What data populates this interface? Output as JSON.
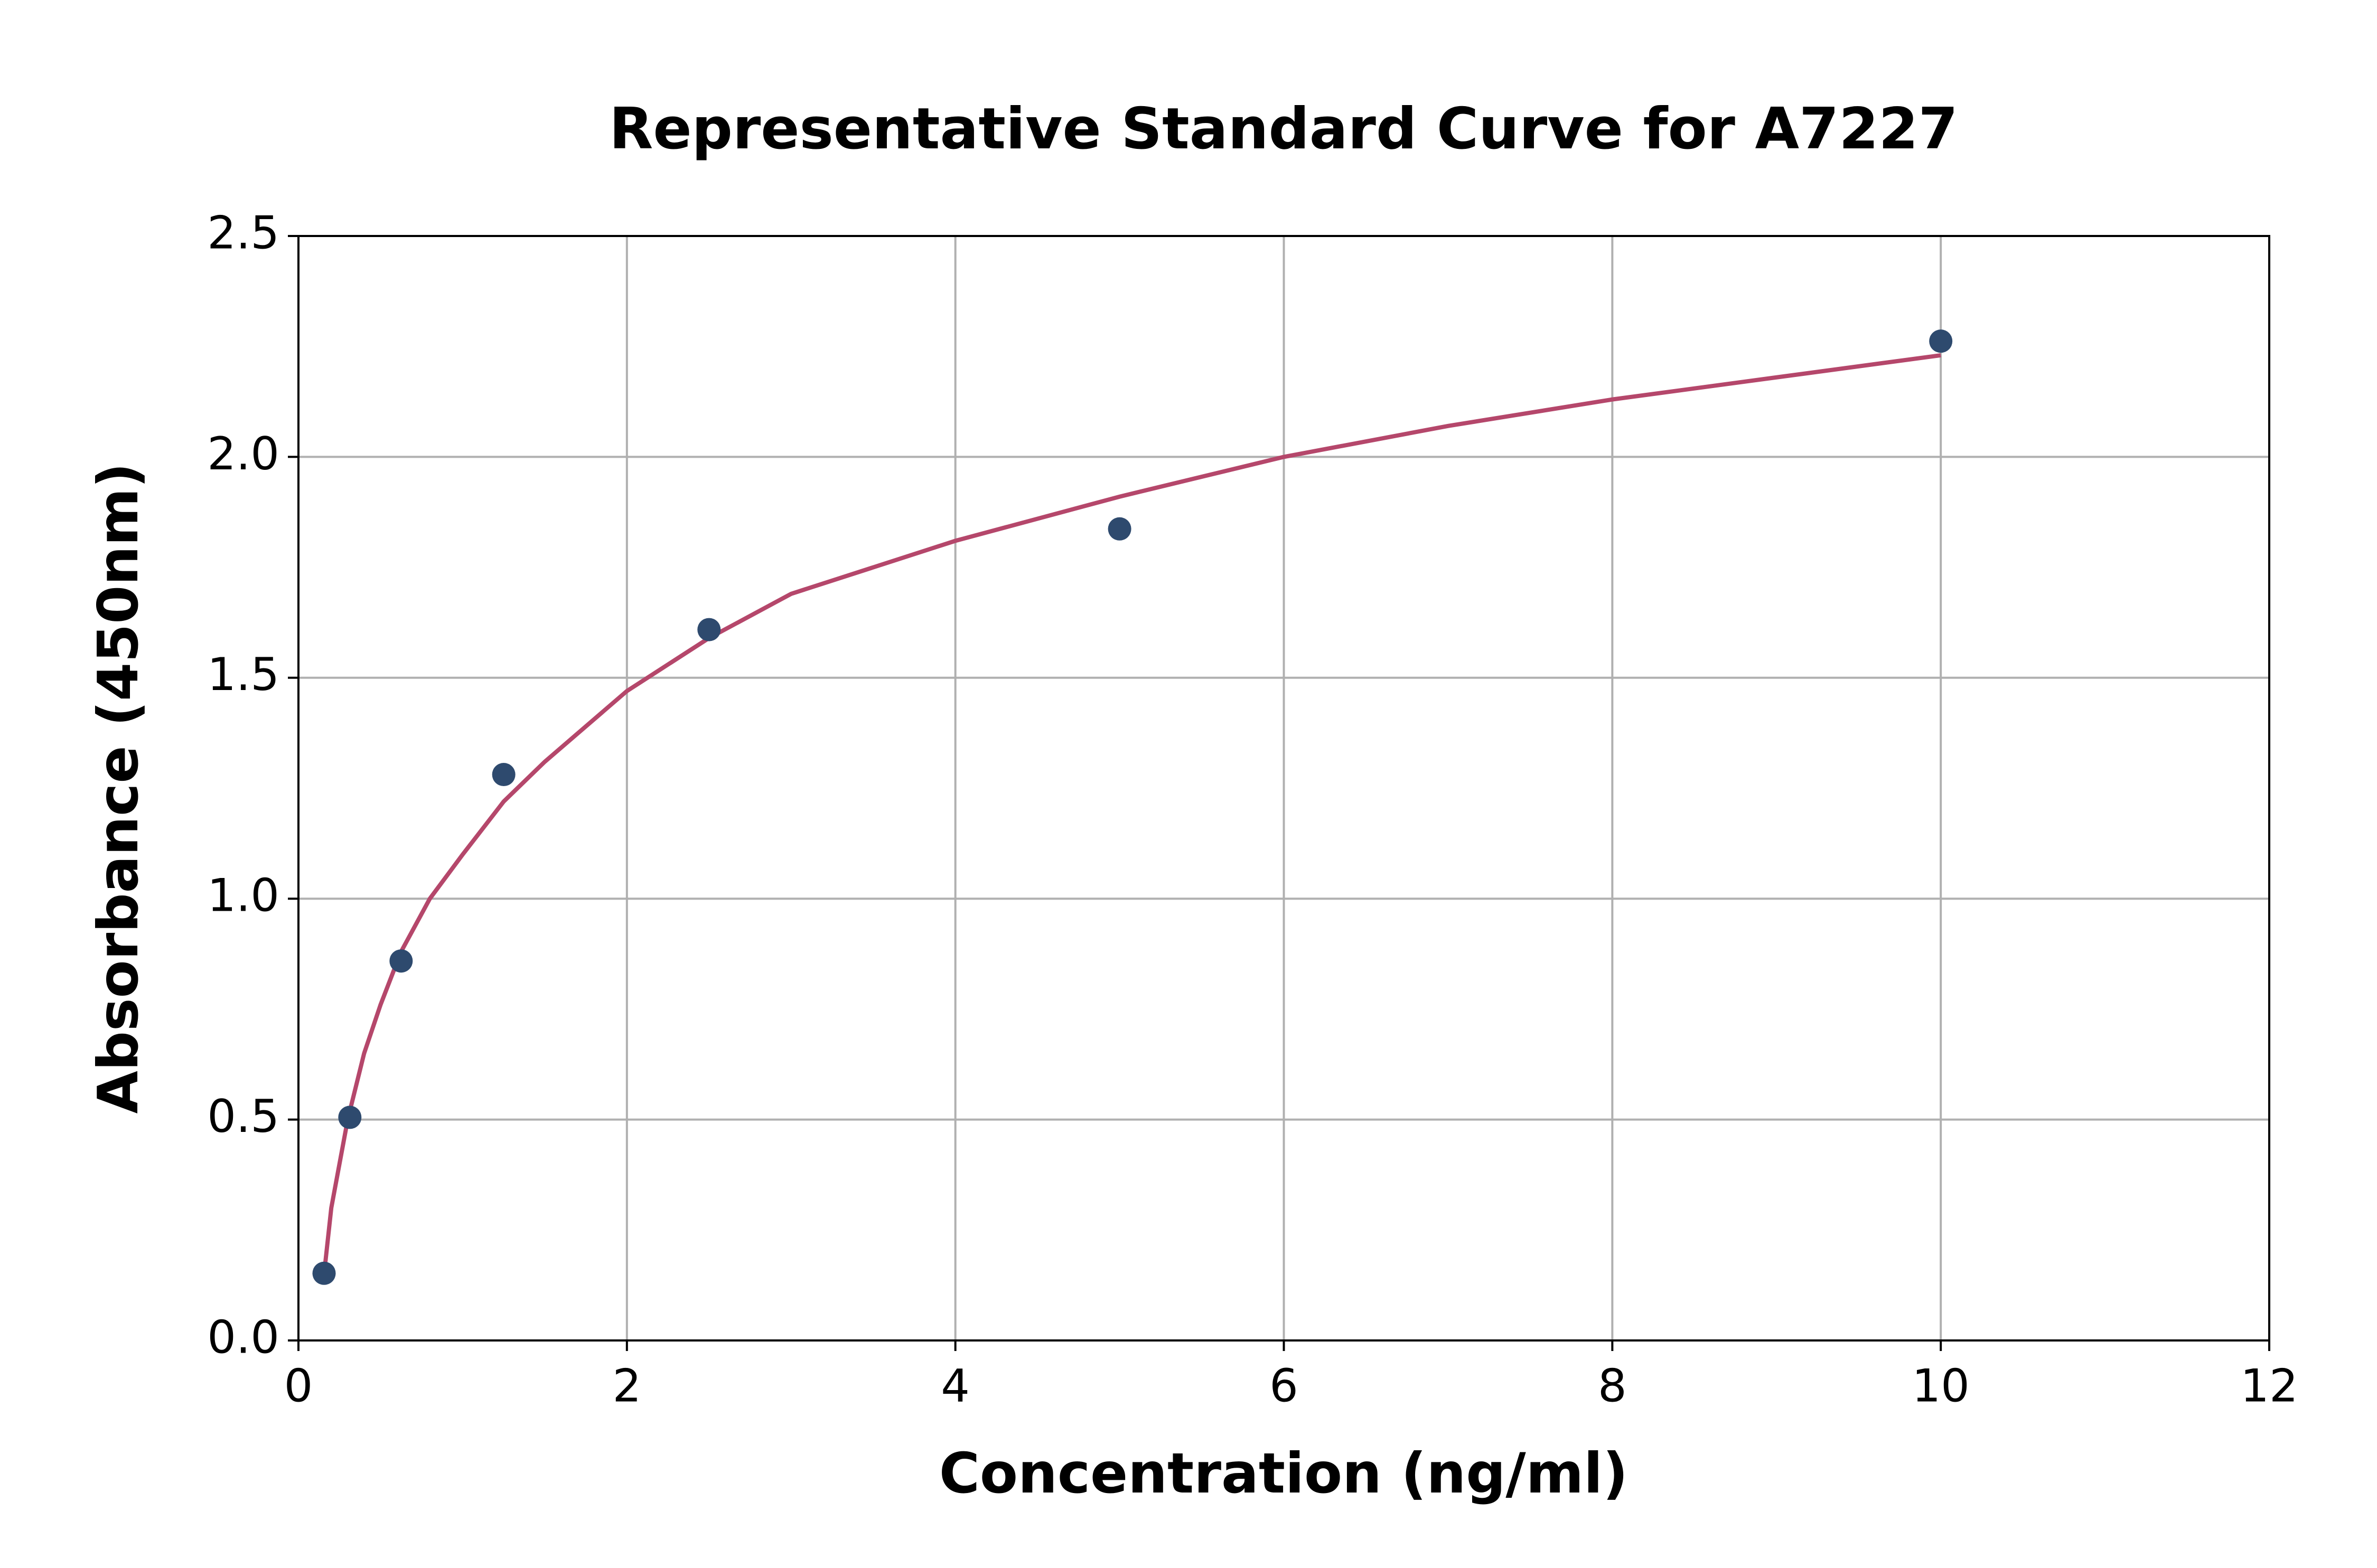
{
  "chart_data": {
    "type": "scatter",
    "title": "Representative Standard Curve for A7227",
    "xlabel": "Concentration (ng/ml)",
    "ylabel": "Absorbance (450nm)",
    "xlim": [
      0,
      12
    ],
    "xticks": [
      0,
      2,
      4,
      6,
      8,
      10,
      12
    ],
    "ylim": [
      0,
      2.5
    ],
    "yticks": [
      {
        "value": 0,
        "label": "0.0"
      },
      0.5,
      {
        "value": 1,
        "label": "1.0"
      },
      1.5,
      {
        "value": 2,
        "label": "2.0"
      },
      2.5
    ],
    "grid": true,
    "series": [
      {
        "mode": "line",
        "color": "#b5476b",
        "x": [
          0.156,
          0.2,
          0.3,
          0.4,
          0.5,
          0.625,
          0.8,
          1,
          1.25,
          1.5,
          2,
          2.5,
          3,
          4,
          5,
          6,
          7,
          8,
          9,
          10
        ],
        "values": [
          0.15,
          0.3,
          0.5,
          0.65,
          0.76,
          0.88,
          1.0,
          1.1,
          1.22,
          1.31,
          1.47,
          1.59,
          1.69,
          1.81,
          1.91,
          2.0,
          2.07,
          2.13,
          2.18,
          2.23
        ]
      },
      {
        "mode": "markers",
        "color": "#2e4a6e",
        "x": [
          0.156,
          0.313,
          0.625,
          1.25,
          2.5,
          5,
          10
        ],
        "values": [
          0.152,
          0.505,
          0.859,
          1.281,
          1.609,
          1.837,
          2.262
        ]
      }
    ]
  }
}
